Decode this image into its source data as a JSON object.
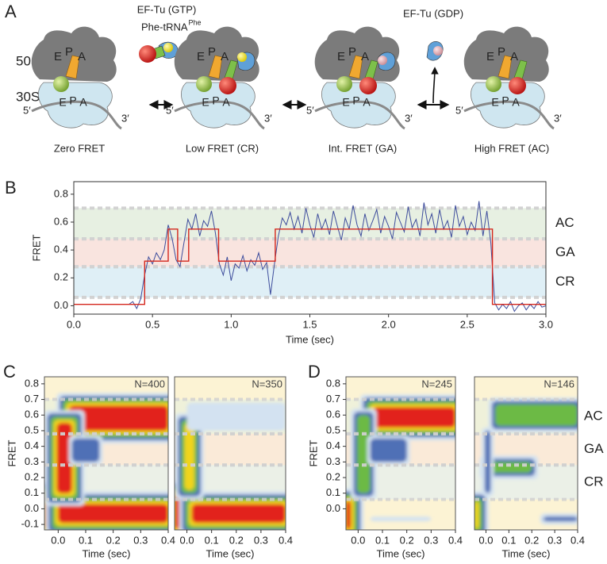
{
  "letters": [
    "A",
    "B",
    "C",
    "D"
  ],
  "diagram": {
    "subunits": [
      "50S",
      "30S"
    ],
    "sites": [
      "E",
      "P",
      "A"
    ],
    "ends": [
      "5′",
      "3′"
    ],
    "states": [
      "Zero FRET",
      "Low FRET (CR)",
      "Int. FRET (GA)",
      "High FRET (AC)"
    ],
    "incoming": [
      "EF-Tu (GTP)",
      "Phe-tRNA"
    ],
    "incoming_sup": "Phe",
    "released": "EF-Tu (GDP)"
  },
  "chart_data": [
    {
      "type": "line",
      "xlabel": "Time (sec)",
      "ylabel": "FRET",
      "xlim": [
        0,
        3
      ],
      "ylim": [
        -0.06,
        0.89
      ],
      "xticks": [
        {
          "value": 0,
          "label": "0.0"
        },
        0.5,
        {
          "value": 1,
          "label": "1.0"
        },
        1.5,
        {
          "value": 2,
          "label": "2.0"
        },
        2.5,
        {
          "value": 3,
          "label": "3.0"
        }
      ],
      "yticks": [
        {
          "value": 0,
          "label": "0.0"
        },
        0.2,
        0.4,
        0.6,
        0.8
      ],
      "bands": [
        {
          "name": "CR",
          "range": [
            0.06,
            0.28
          ],
          "color": "#dcedf5"
        },
        {
          "name": "GA",
          "range": [
            0.28,
            0.48
          ],
          "color": "#f8e1db"
        },
        {
          "name": "AC",
          "range": [
            0.48,
            0.7
          ],
          "color": "#e4eedf"
        }
      ],
      "series": [
        {
          "color": "#3d4c9c",
          "x": [
            0.35,
            0.375,
            0.4,
            0.425,
            0.45,
            0.475,
            0.5,
            0.525,
            0.55,
            0.575,
            0.6,
            0.625,
            0.65,
            0.675,
            0.7,
            0.725,
            0.75,
            0.775,
            0.8,
            0.825,
            0.85,
            0.875,
            0.9,
            0.925,
            0.95,
            0.975,
            1,
            1.025,
            1.05,
            1.075,
            1.1,
            1.125,
            1.15,
            1.175,
            1.2,
            1.225,
            1.25,
            1.275,
            1.3,
            1.325,
            1.35,
            1.375,
            1.4,
            1.425,
            1.45,
            1.475,
            1.5,
            1.525,
            1.55,
            1.575,
            1.6,
            1.625,
            1.65,
            1.675,
            1.7,
            1.725,
            1.75,
            1.775,
            1.8,
            1.825,
            1.85,
            1.875,
            1.9,
            1.925,
            1.95,
            1.975,
            2,
            2.025,
            2.05,
            2.075,
            2.1,
            2.125,
            2.15,
            2.175,
            2.2,
            2.225,
            2.25,
            2.275,
            2.3,
            2.325,
            2.35,
            2.375,
            2.4,
            2.425,
            2.45,
            2.475,
            2.5,
            2.525,
            2.55,
            2.575,
            2.6,
            2.625,
            2.65,
            2.675,
            2.7,
            2.725,
            2.75,
            2.775,
            2.8,
            2.825,
            2.85,
            2.875,
            2.9,
            2.925,
            2.95,
            2.975,
            3
          ],
          "values": [
            0.01,
            0.03,
            -0.02,
            0.05,
            0.22,
            0.35,
            0.3,
            0.38,
            0.33,
            0.4,
            0.58,
            0.48,
            0.33,
            0.28,
            0.45,
            0.62,
            0.55,
            0.66,
            0.5,
            0.61,
            0.57,
            0.68,
            0.52,
            0.3,
            0.22,
            0.35,
            0.18,
            0.3,
            0.27,
            0.36,
            0.25,
            0.33,
            0.29,
            0.38,
            0.26,
            0.31,
            0.08,
            0.3,
            0.5,
            0.63,
            0.58,
            0.67,
            0.55,
            0.64,
            0.52,
            0.7,
            0.58,
            0.49,
            0.66,
            0.55,
            0.62,
            0.51,
            0.68,
            0.57,
            0.47,
            0.63,
            0.55,
            0.72,
            0.58,
            0.5,
            0.66,
            0.54,
            0.61,
            0.69,
            0.52,
            0.64,
            0.57,
            0.48,
            0.67,
            0.6,
            0.53,
            0.71,
            0.56,
            0.62,
            0.5,
            0.74,
            0.58,
            0.66,
            0.52,
            0.69,
            0.55,
            0.61,
            0.49,
            0.72,
            0.57,
            0.64,
            0.51,
            0.6,
            0.54,
            0.75,
            0.5,
            0.68,
            0.45,
            0.02,
            -0.03,
            0.01,
            -0.02,
            0.03,
            -0.04,
            0,
            0.02,
            -0.03,
            0.01,
            -0.02,
            0.03,
            -0.01,
            0
          ]
        },
        {
          "color": "#d4261c",
          "x": [
            0,
            0.45,
            0.45,
            0.6,
            0.6,
            0.66,
            0.66,
            0.73,
            0.73,
            0.92,
            0.92,
            1.28,
            1.28,
            2.66,
            2.66,
            3
          ],
          "values": [
            0.01,
            0.01,
            0.32,
            0.32,
            0.55,
            0.55,
            0.32,
            0.32,
            0.55,
            0.55,
            0.32,
            0.32,
            0.55,
            0.55,
            0.01,
            0.01
          ]
        }
      ]
    },
    {
      "type": "heatmap",
      "label": "N=400",
      "xlabel": "Time (sec)",
      "ylabel": "FRET",
      "xlim": [
        -0.05,
        0.4
      ],
      "ylim": [
        -0.135,
        0.845
      ],
      "xticks": [
        {
          "value": 0,
          "label": "0.0"
        },
        0.1,
        0.2,
        0.3,
        0.4
      ],
      "yticks": [
        -0.1,
        {
          "value": 0,
          "label": "0.0"
        },
        0.1,
        0.2,
        0.3,
        0.4,
        0.5,
        0.6,
        0.7,
        0.8
      ]
    },
    {
      "type": "heatmap",
      "label": "N=350",
      "xlabel": "Time (sec)",
      "xlim": [
        -0.05,
        0.4
      ],
      "ylim": [
        -0.135,
        0.845
      ],
      "xticks": [
        {
          "value": 0,
          "label": "0.0"
        },
        0.1,
        0.2,
        0.3,
        0.4
      ]
    },
    {
      "type": "heatmap",
      "label": "N=245",
      "xlabel": "Time (sec)",
      "ylabel": "FRET",
      "xlim": [
        -0.05,
        0.4
      ],
      "ylim": [
        -0.135,
        0.845
      ],
      "xticks": [
        {
          "value": 0,
          "label": "0.0"
        },
        0.1,
        0.2,
        0.3,
        0.4
      ],
      "yticks": [
        {
          "value": 0,
          "label": "0.0"
        },
        0.1,
        0.2,
        0.3,
        0.4,
        0.5,
        0.6,
        0.7,
        0.8
      ]
    },
    {
      "type": "heatmap",
      "label": "N=146",
      "xlabel": "Time (sec)",
      "xlim": [
        -0.05,
        0.4
      ],
      "ylim": [
        -0.135,
        0.845
      ],
      "band_labels": true,
      "xticks": [
        {
          "value": 0,
          "label": "0.0"
        },
        0.1,
        0.2,
        0.3,
        0.4
      ]
    }
  ]
}
